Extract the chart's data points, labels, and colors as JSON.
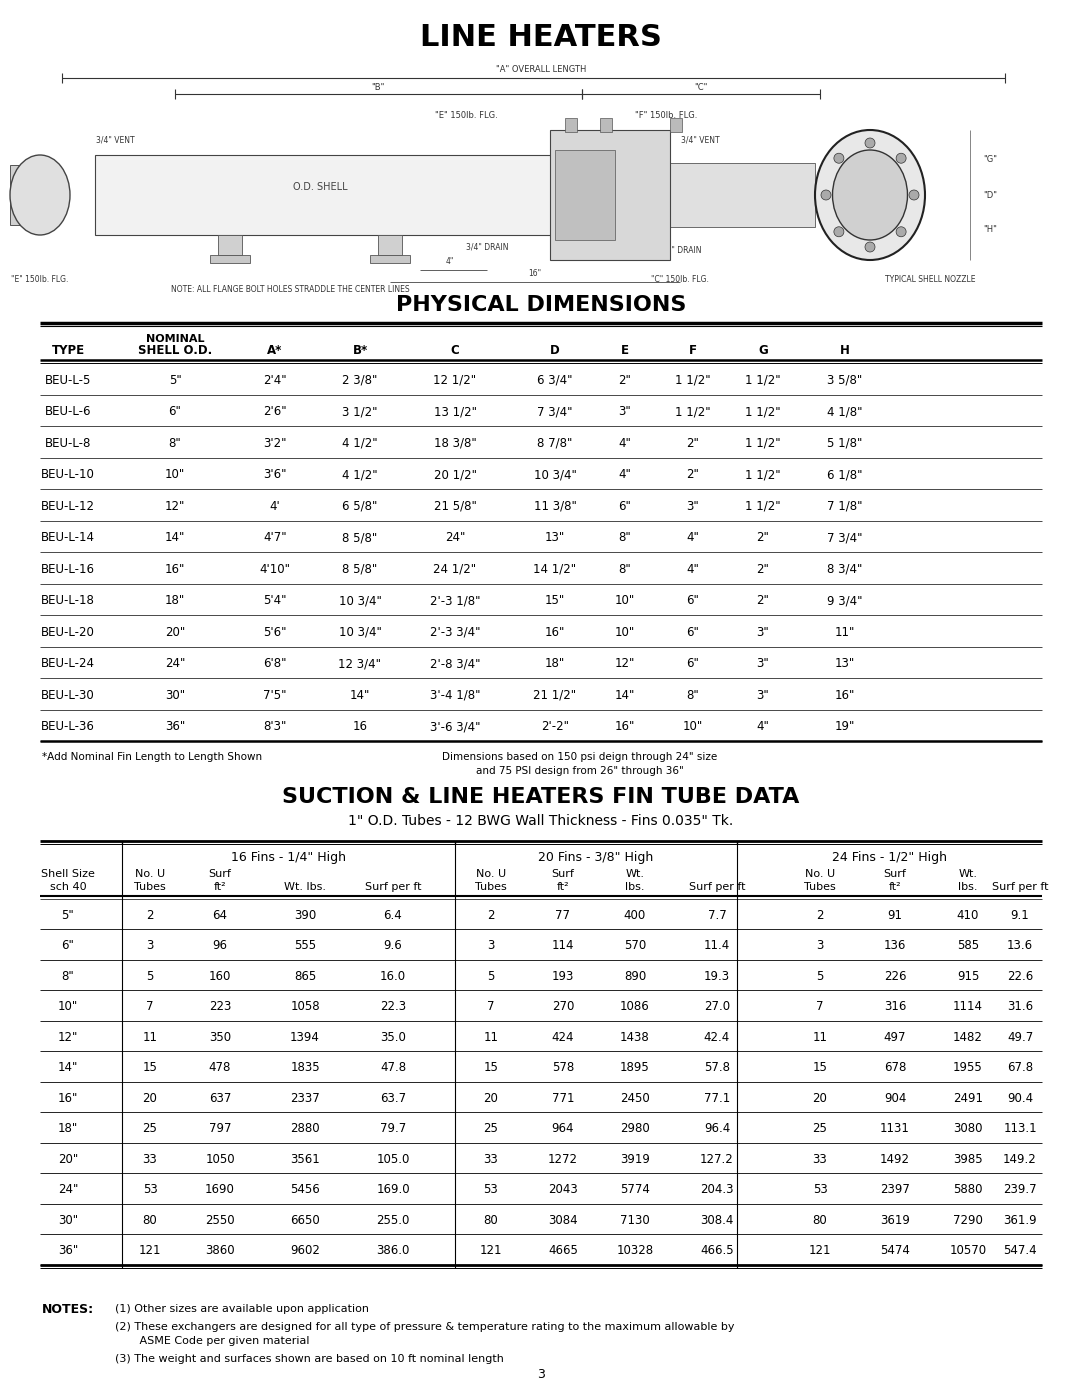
{
  "title1": "LINE HEATERS",
  "title2": "PHYSICAL DIMENSIONS",
  "title3": "SUCTION & LINE HEATERS FIN TUBE DATA",
  "subtitle3": "1\" O.D. Tubes - 12 BWG Wall Thickness - Fins 0.035\" Tk.",
  "phys_col_headers_line1": [
    "",
    "NOMINAL",
    "",
    "",
    "",
    "",
    "",
    "",
    "",
    ""
  ],
  "phys_col_headers_line2": [
    "TYPE",
    "SHELL O.D.",
    "A*",
    "B*",
    "C",
    "D",
    "E",
    "F",
    "G",
    "H"
  ],
  "phys_data": [
    [
      "BEU-L-5",
      "5\"",
      "2'4\"",
      "2 3/8\"",
      "12 1/2\"",
      "6 3/4\"",
      "2\"",
      "1 1/2\"",
      "1 1/2\"",
      "3 5/8\""
    ],
    [
      "BEU-L-6",
      "6\"",
      "2'6\"",
      "3 1/2\"",
      "13 1/2\"",
      "7 3/4\"",
      "3\"",
      "1 1/2\"",
      "1 1/2\"",
      "4 1/8\""
    ],
    [
      "BEU-L-8",
      "8\"",
      "3'2\"",
      "4 1/2\"",
      "18 3/8\"",
      "8 7/8\"",
      "4\"",
      "2\"",
      "1 1/2\"",
      "5 1/8\""
    ],
    [
      "BEU-L-10",
      "10\"",
      "3'6\"",
      "4 1/2\"",
      "20 1/2\"",
      "10 3/4\"",
      "4\"",
      "2\"",
      "1 1/2\"",
      "6 1/8\""
    ],
    [
      "BEU-L-12",
      "12\"",
      "4'",
      "6 5/8\"",
      "21 5/8\"",
      "11 3/8\"",
      "6\"",
      "3\"",
      "1 1/2\"",
      "7 1/8\""
    ],
    [
      "BEU-L-14",
      "14\"",
      "4'7\"",
      "8 5/8\"",
      "24\"",
      "13\"",
      "8\"",
      "4\"",
      "2\"",
      "7 3/4\""
    ],
    [
      "BEU-L-16",
      "16\"",
      "4'10\"",
      "8 5/8\"",
      "24 1/2\"",
      "14 1/2\"",
      "8\"",
      "4\"",
      "2\"",
      "8 3/4\""
    ],
    [
      "BEU-L-18",
      "18\"",
      "5'4\"",
      "10 3/4\"",
      "2'-3 1/8\"",
      "15\"",
      "10\"",
      "6\"",
      "2\"",
      "9 3/4\""
    ],
    [
      "BEU-L-20",
      "20\"",
      "5'6\"",
      "10 3/4\"",
      "2'-3 3/4\"",
      "16\"",
      "10\"",
      "6\"",
      "3\"",
      "11\""
    ],
    [
      "BEU-L-24",
      "24\"",
      "6'8\"",
      "12 3/4\"",
      "2'-8 3/4\"",
      "18\"",
      "12\"",
      "6\"",
      "3\"",
      "13\""
    ],
    [
      "BEU-L-30",
      "30\"",
      "7'5\"",
      "14\"",
      "3'-4 1/8\"",
      "21 1/2\"",
      "14\"",
      "8\"",
      "3\"",
      "16\""
    ],
    [
      "BEU-L-36",
      "36\"",
      "8'3\"",
      "16",
      "3'-6 3/4\"",
      "2'-2\"",
      "16\"",
      "10\"",
      "4\"",
      "19\""
    ]
  ],
  "phys_note1": "*Add Nominal Fin Length to Length Shown",
  "phys_note2": "Dimensions based on 150 psi deign through 24\" size",
  "phys_note3": "and 75 PSI design from 26\" through 36\"",
  "fin_group_headers": [
    "16 Fins - 1/4\" High",
    "20 Fins - 3/8\" High",
    "24 Fins - 1/2\" High"
  ],
  "fin_data": [
    [
      "5\"",
      2,
      64,
      390,
      6.4,
      2,
      77,
      400,
      7.7,
      2,
      91,
      410,
      9.1
    ],
    [
      "6\"",
      3,
      96,
      555,
      9.6,
      3,
      114,
      570,
      11.4,
      3,
      136,
      585,
      13.6
    ],
    [
      "8\"",
      5,
      160,
      865,
      16.0,
      5,
      193,
      890,
      19.3,
      5,
      226,
      915,
      22.6
    ],
    [
      "10\"",
      7,
      223,
      1058,
      22.3,
      7,
      270,
      1086,
      27.0,
      7,
      316,
      1114,
      31.6
    ],
    [
      "12\"",
      11,
      350,
      1394,
      35.0,
      11,
      424,
      1438,
      42.4,
      11,
      497,
      1482,
      49.7
    ],
    [
      "14\"",
      15,
      478,
      1835,
      47.8,
      15,
      578,
      1895,
      57.8,
      15,
      678,
      1955,
      67.8
    ],
    [
      "16\"",
      20,
      637,
      2337,
      63.7,
      20,
      771,
      2450,
      77.1,
      20,
      904,
      2491,
      90.4
    ],
    [
      "18\"",
      25,
      797,
      2880,
      79.7,
      25,
      964,
      2980,
      96.4,
      25,
      1131,
      3080,
      113.1
    ],
    [
      "20\"",
      33,
      1050,
      3561,
      105.0,
      33,
      1272,
      3919,
      127.2,
      33,
      1492,
      3985,
      149.2
    ],
    [
      "24\"",
      53,
      1690,
      5456,
      169.0,
      53,
      2043,
      5774,
      204.3,
      53,
      2397,
      5880,
      239.7
    ],
    [
      "30\"",
      80,
      2550,
      6650,
      255.0,
      80,
      3084,
      7130,
      308.4,
      80,
      3619,
      7290,
      361.9
    ],
    [
      "36\"",
      121,
      3860,
      9602,
      386.0,
      121,
      4665,
      10328,
      466.5,
      121,
      5474,
      10570,
      547.4
    ]
  ],
  "notes_title": "NOTES:",
  "note1": "(1) Other sizes are available upon application",
  "note2a": "(2) These exchangers are designed for all type of pressure & temperature rating to the maximum allowable by",
  "note2b": "       ASME Code per given material",
  "note3": "(3) The weight and surfaces shown are based on 10 ft nominal length",
  "page_number": "3"
}
